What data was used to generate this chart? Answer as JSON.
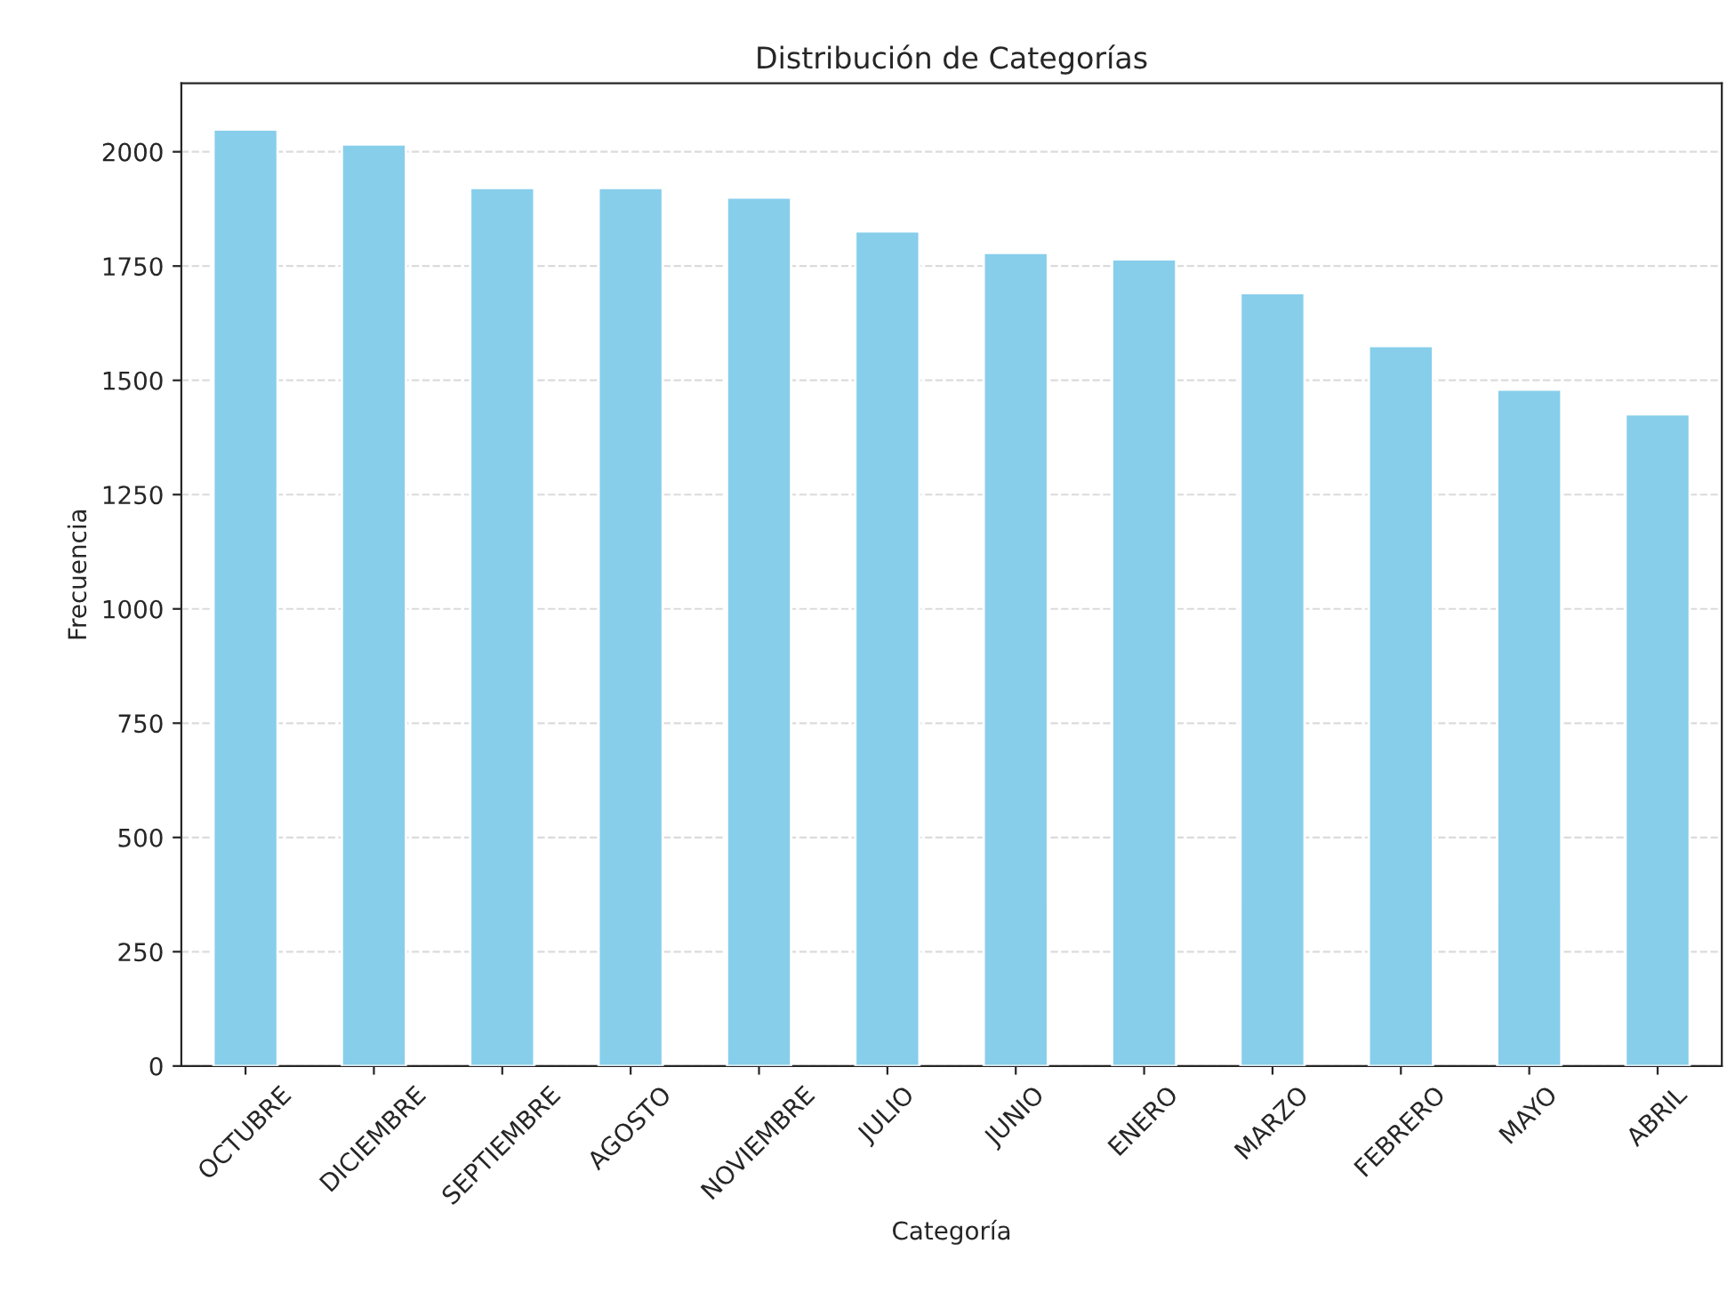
{
  "chart_data": {
    "type": "bar",
    "title": "Distribución de Categorías",
    "xlabel": "Categoría",
    "ylabel": "Frecuencia",
    "categories": [
      "OCTUBRE",
      "DICIEMBRE",
      "SEPTIEMBRE",
      "AGOSTO",
      "NOVIEMBRE",
      "JULIO",
      "JUNIO",
      "ENERO",
      "MARZO",
      "FEBRERO",
      "MAYO",
      "ABRIL"
    ],
    "values": [
      2049,
      2016,
      1921,
      1921,
      1900,
      1826,
      1779,
      1765,
      1691,
      1575,
      1480,
      1426
    ],
    "color": "#87ceeb",
    "ylim": [
      0,
      2150
    ],
    "yticks": [
      0,
      250,
      500,
      750,
      1000,
      1250,
      1500,
      1750,
      2000
    ],
    "grid": "y"
  }
}
